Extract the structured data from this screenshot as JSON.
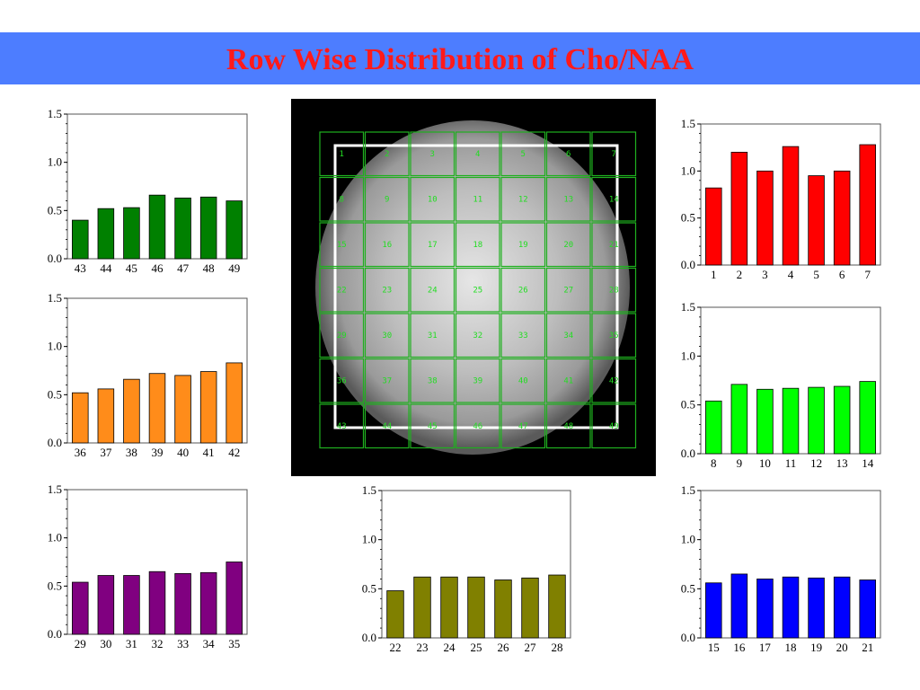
{
  "title": "Row Wise Distribution of Cho/NAA",
  "colors": {
    "banner": "#4d7dff",
    "title": "#ff1a1a",
    "voxel_grid": "#1fb01f",
    "voxel_text": "#22dd22"
  },
  "voxel_grid": {
    "rows": 7,
    "cols": 7,
    "labels": [
      "1",
      "2",
      "3",
      "4",
      "5",
      "6",
      "7",
      "8",
      "9",
      "10",
      "11",
      "12",
      "13",
      "14",
      "15",
      "16",
      "17",
      "18",
      "19",
      "20",
      "21",
      "22",
      "23",
      "24",
      "25",
      "26",
      "27",
      "28",
      "29",
      "30",
      "31",
      "32",
      "33",
      "34",
      "35",
      "36",
      "37",
      "38",
      "39",
      "40",
      "41",
      "42",
      "43",
      "44",
      "45",
      "46",
      "47",
      "48",
      "49"
    ]
  },
  "chart_data": [
    {
      "id": "row7",
      "type": "bar",
      "color": "#008000",
      "categories": [
        "43",
        "44",
        "45",
        "46",
        "47",
        "48",
        "49"
      ],
      "values": [
        0.4,
        0.52,
        0.53,
        0.66,
        0.63,
        0.64,
        0.6
      ],
      "ylim": [
        0,
        1.5
      ],
      "yticks": [
        "0.0",
        "0.5",
        "1.0",
        "1.5"
      ],
      "title": "",
      "xlabel": "",
      "ylabel": ""
    },
    {
      "id": "row6",
      "type": "bar",
      "color": "#ff8c1a",
      "categories": [
        "36",
        "37",
        "38",
        "39",
        "40",
        "41",
        "42"
      ],
      "values": [
        0.52,
        0.56,
        0.66,
        0.72,
        0.7,
        0.74,
        0.83
      ],
      "ylim": [
        0,
        1.5
      ],
      "yticks": [
        "0.0",
        "0.5",
        "1.0",
        "1.5"
      ],
      "title": "",
      "xlabel": "",
      "ylabel": ""
    },
    {
      "id": "row5",
      "type": "bar",
      "color": "#800080",
      "categories": [
        "29",
        "30",
        "31",
        "32",
        "33",
        "34",
        "35"
      ],
      "values": [
        0.54,
        0.61,
        0.61,
        0.65,
        0.63,
        0.64,
        0.75
      ],
      "ylim": [
        0,
        1.5
      ],
      "yticks": [
        "0.0",
        "0.5",
        "1.0",
        "1.5"
      ],
      "title": "",
      "xlabel": "",
      "ylabel": ""
    },
    {
      "id": "row4",
      "type": "bar",
      "color": "#808000",
      "categories": [
        "22",
        "23",
        "24",
        "25",
        "26",
        "27",
        "28"
      ],
      "values": [
        0.48,
        0.62,
        0.62,
        0.62,
        0.59,
        0.61,
        0.64
      ],
      "ylim": [
        0,
        1.5
      ],
      "yticks": [
        "0.0",
        "0.5",
        "1.0",
        "1.5"
      ],
      "title": "",
      "xlabel": "",
      "ylabel": ""
    },
    {
      "id": "row1",
      "type": "bar",
      "color": "#ff0000",
      "categories": [
        "1",
        "2",
        "3",
        "4",
        "5",
        "6",
        "7"
      ],
      "values": [
        0.82,
        1.2,
        1.0,
        1.26,
        0.95,
        1.0,
        1.28
      ],
      "ylim": [
        0,
        1.5
      ],
      "yticks": [
        "0.0",
        "0.5",
        "1.0",
        "1.5"
      ],
      "title": "",
      "xlabel": "",
      "ylabel": ""
    },
    {
      "id": "row2",
      "type": "bar",
      "color": "#00ff00",
      "categories": [
        "8",
        "9",
        "10",
        "11",
        "12",
        "13",
        "14"
      ],
      "values": [
        0.54,
        0.71,
        0.66,
        0.67,
        0.68,
        0.69,
        0.74
      ],
      "ylim": [
        0,
        1.5
      ],
      "yticks": [
        "0.0",
        "0.5",
        "1.0",
        "1.5"
      ],
      "title": "",
      "xlabel": "",
      "ylabel": ""
    },
    {
      "id": "row3",
      "type": "bar",
      "color": "#0000ff",
      "categories": [
        "15",
        "16",
        "17",
        "18",
        "19",
        "20",
        "21"
      ],
      "values": [
        0.56,
        0.65,
        0.6,
        0.62,
        0.61,
        0.62,
        0.59
      ],
      "ylim": [
        0,
        1.5
      ],
      "yticks": [
        "0.0",
        "0.5",
        "1.0",
        "1.5"
      ],
      "title": "",
      "xlabel": "",
      "ylabel": ""
    }
  ]
}
